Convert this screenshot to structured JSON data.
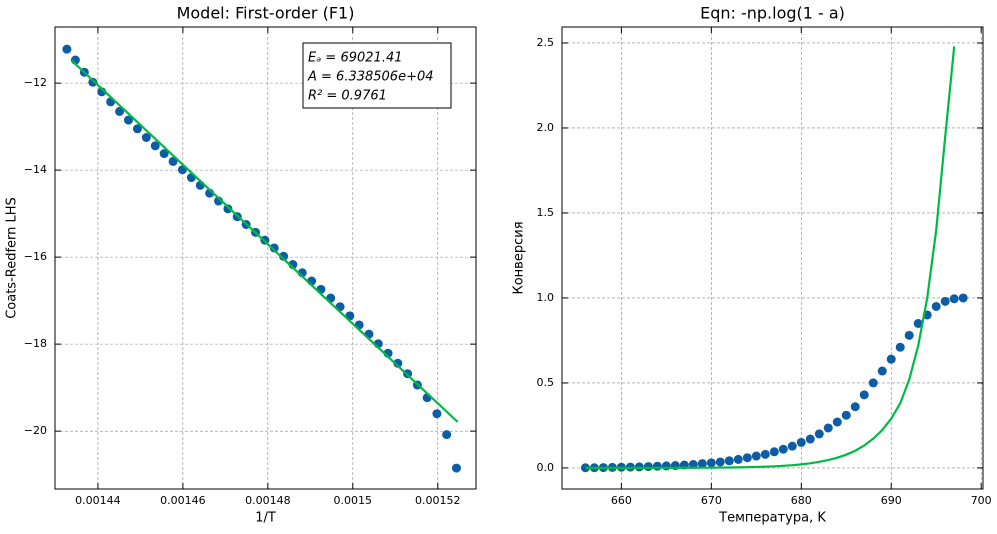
{
  "chart_data": [
    {
      "type": "scatter",
      "title": "Model: First-order (F1)",
      "x_label": "1/T",
      "y_label": "Coats-Redfern LHS",
      "xlim": [
        0.0014299,
        0.001529
      ],
      "ylim": [
        -21.33,
        -10.71
      ],
      "xticks": [
        0.00144,
        0.00146,
        0.00148,
        0.0015,
        0.00152
      ],
      "yticks": [
        {
          "value": -12,
          "label": "−12"
        },
        {
          "value": -14,
          "label": "−14"
        },
        {
          "value": -16,
          "label": "−16"
        },
        {
          "value": -18,
          "label": "−18"
        },
        {
          "value": -20,
          "label": "−20"
        }
      ],
      "grid": true,
      "annotation": [
        "Eₐ = 69021.41",
        "A = 6.338506e+04",
        "R² = 0.9761"
      ],
      "series": [
        {
          "type": "scatter",
          "color": "#0c5da5",
          "x": [
            0.0014327,
            0.0014347,
            0.0014368,
            0.0014388,
            0.0014409,
            0.001443,
            0.0014451,
            0.0014472,
            0.0014493,
            0.0014514,
            0.0014535,
            0.0014556,
            0.0014577,
            0.0014599,
            0.001462,
            0.0014641,
            0.0014663,
            0.0014684,
            0.0014706,
            0.0014728,
            0.0014749,
            0.0014771,
            0.0014793,
            0.0014815,
            0.0014837,
            0.0014859,
            0.0014881,
            0.0014903,
            0.0014925,
            0.0014948,
            0.001497,
            0.0014993,
            0.0015015,
            0.0015038,
            0.001506,
            0.0015083,
            0.0015106,
            0.0015129,
            0.0015152,
            0.0015175,
            0.0015198,
            0.0015221,
            0.0015244
          ],
          "values": [
            -11.22,
            -11.47,
            -11.75,
            -11.98,
            -12.2,
            -12.43,
            -12.65,
            -12.85,
            -13.05,
            -13.25,
            -13.44,
            -13.62,
            -13.8,
            -13.99,
            -14.17,
            -14.35,
            -14.53,
            -14.71,
            -14.89,
            -15.07,
            -15.25,
            -15.43,
            -15.61,
            -15.79,
            -15.98,
            -16.17,
            -16.36,
            -16.55,
            -16.74,
            -16.94,
            -17.14,
            -17.35,
            -17.56,
            -17.77,
            -17.99,
            -18.21,
            -18.44,
            -18.68,
            -18.94,
            -19.23,
            -19.6,
            -20.08,
            -20.85
          ]
        },
        {
          "type": "line",
          "color": "#00b945",
          "x": [
            0.0014337,
            0.0015247
          ],
          "values": [
            -11.47,
            -19.79
          ]
        }
      ]
    },
    {
      "type": "scatter",
      "title": "Eqn: -np.log(1 - a)",
      "x_label": "Температура, K",
      "y_label": "Конверсия",
      "xlim": [
        653.4,
        700.2
      ],
      "ylim": [
        -0.124,
        2.594
      ],
      "xticks": [
        660,
        670,
        680,
        690,
        700
      ],
      "yticks": [
        {
          "value": 0,
          "label": "0.0"
        },
        {
          "value": 0.5,
          "label": "0.5"
        },
        {
          "value": 1,
          "label": "1.0"
        },
        {
          "value": 1.5,
          "label": "1.5"
        },
        {
          "value": 2,
          "label": "2.0"
        },
        {
          "value": 2.5,
          "label": "2.5"
        }
      ],
      "grid": true,
      "series": [
        {
          "type": "scatter",
          "color": "#0c5da5",
          "x": [
            656,
            657,
            658,
            659,
            660,
            661,
            662,
            663,
            664,
            665,
            666,
            667,
            668,
            669,
            670,
            671,
            672,
            673,
            674,
            675,
            676,
            677,
            678,
            679,
            680,
            681,
            682,
            683,
            684,
            685,
            686,
            687,
            688,
            689,
            690,
            691,
            692,
            693,
            694,
            695,
            696,
            697,
            698
          ],
          "values": [
            0.001,
            0.001,
            0.002,
            0.003,
            0.004,
            0.005,
            0.006,
            0.008,
            0.01,
            0.012,
            0.014,
            0.017,
            0.02,
            0.025,
            0.03,
            0.035,
            0.042,
            0.05,
            0.06,
            0.07,
            0.08,
            0.095,
            0.11,
            0.128,
            0.15,
            0.17,
            0.2,
            0.235,
            0.27,
            0.31,
            0.36,
            0.43,
            0.5,
            0.57,
            0.64,
            0.71,
            0.78,
            0.85,
            0.9,
            0.95,
            0.98,
            0.995,
            1.0
          ]
        },
        {
          "type": "line",
          "color": "#00b945",
          "x": [
            656,
            657,
            658,
            659,
            660,
            661,
            662,
            663,
            664,
            665,
            666,
            667,
            668,
            669,
            670,
            671,
            672,
            673,
            674,
            675,
            676,
            677,
            678,
            679,
            680,
            681,
            682,
            683,
            684,
            685,
            686,
            687,
            688,
            689,
            690,
            691,
            692,
            693,
            694,
            695,
            696,
            697
          ],
          "values": [
            0.0001,
            0.0001,
            0.0001,
            0.0002,
            0.0002,
            0.0003,
            0.0004,
            0.0005,
            0.0006,
            0.0007,
            0.0008,
            0.001,
            0.0012,
            0.0014,
            0.0015,
            0.002,
            0.0026,
            0.0034,
            0.0044,
            0.0057,
            0.0074,
            0.0096,
            0.0124,
            0.016,
            0.021,
            0.027,
            0.036,
            0.046,
            0.06,
            0.078,
            0.101,
            0.132,
            0.172,
            0.223,
            0.29,
            0.38,
            0.52,
            0.72,
            1.0,
            1.4,
            1.95,
            2.48
          ]
        }
      ]
    }
  ]
}
